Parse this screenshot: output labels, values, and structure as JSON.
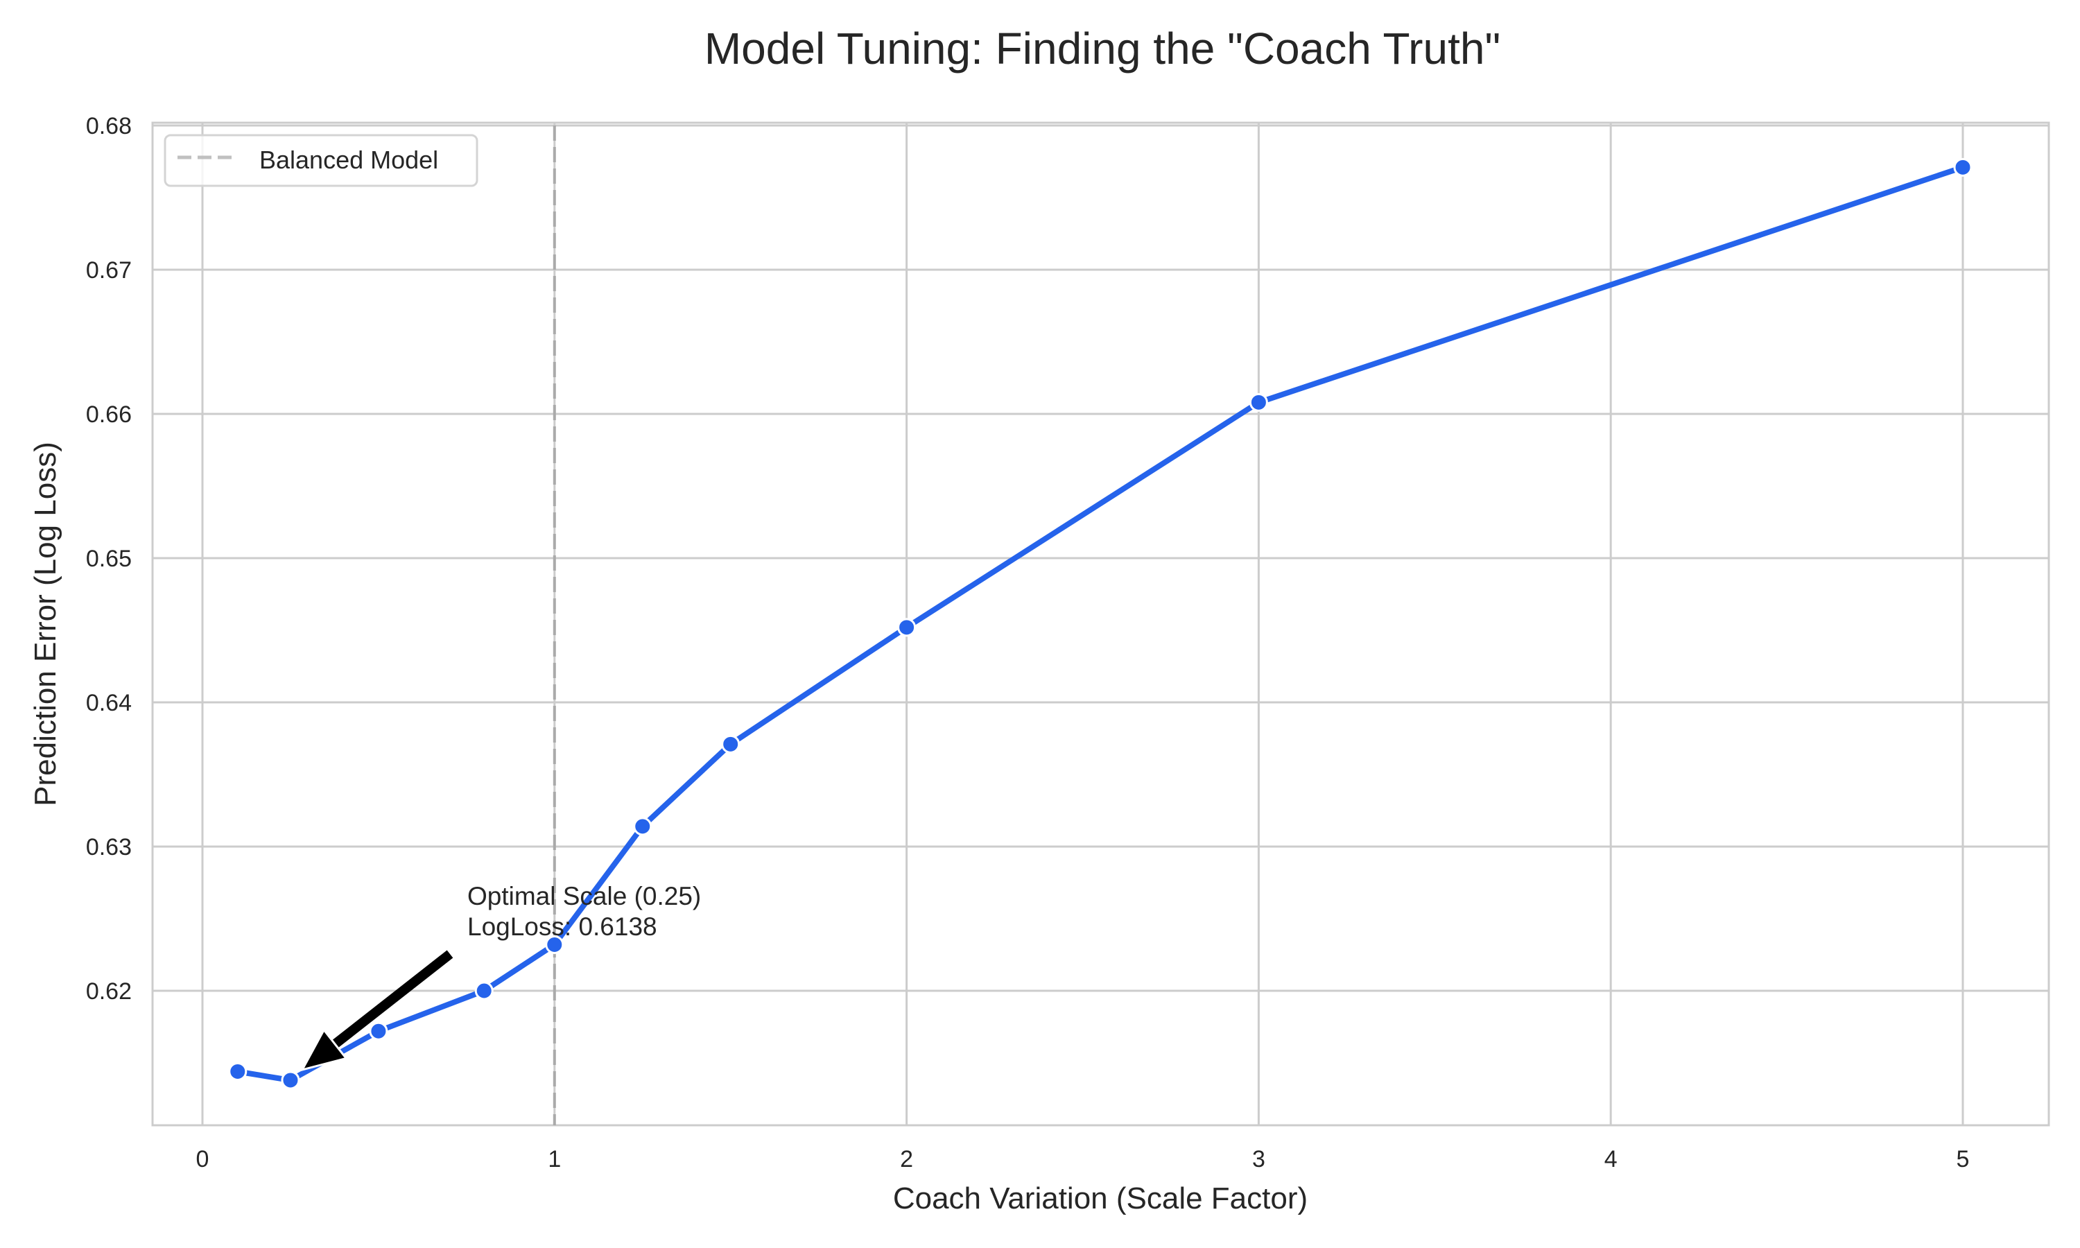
{
  "chart_data": {
    "type": "line",
    "title": "Model Tuning: Finding the \"Coach Truth\"",
    "xlabel": "Coach Variation (Scale Factor)",
    "ylabel": "Prediction Error (Log Loss)",
    "x": [
      0.1,
      0.25,
      0.5,
      0.8,
      1.0,
      1.25,
      1.5,
      2.0,
      3.0,
      5.0
    ],
    "series": [
      {
        "name": "Log Loss",
        "values": [
          0.6144,
          0.6138,
          0.6172,
          0.62,
          0.6232,
          0.6314,
          0.6371,
          0.6452,
          0.6608,
          0.6771
        ],
        "color": "#2563EB",
        "marker": "circle"
      }
    ],
    "xlim": [
      -0.14,
      5.25
    ],
    "ylim": [
      0.6107,
      0.6802
    ],
    "xticks": [
      0,
      1,
      2,
      3,
      4,
      5
    ],
    "xtick_labels": [
      "0",
      "1",
      "2",
      "3",
      "4",
      "5"
    ],
    "yticks": [
      0.62,
      0.63,
      0.64,
      0.65,
      0.66,
      0.67,
      0.68
    ],
    "ytick_labels": [
      "0.62",
      "0.63",
      "0.64",
      "0.65",
      "0.66",
      "0.67",
      "0.68"
    ],
    "grid": true,
    "reference_lines": [
      {
        "orientation": "vertical",
        "x": 1.0,
        "style": "dashed",
        "color": "#aaaaaa",
        "label": "Balanced Model"
      }
    ],
    "legend": {
      "position": "upper left",
      "entries": [
        "Balanced Model"
      ]
    },
    "annotations": [
      {
        "text_lines": [
          "Optimal Scale (0.25)",
          "LogLoss: 0.6138"
        ],
        "point": [
          0.25,
          0.6138
        ],
        "arrow": true
      }
    ]
  },
  "colors": {
    "line": "#2563EB",
    "grid": "#cccccc",
    "spine": "#cccccc",
    "reference_line": "#aaaaaa",
    "arrow": "#000000",
    "text": "#262626"
  }
}
